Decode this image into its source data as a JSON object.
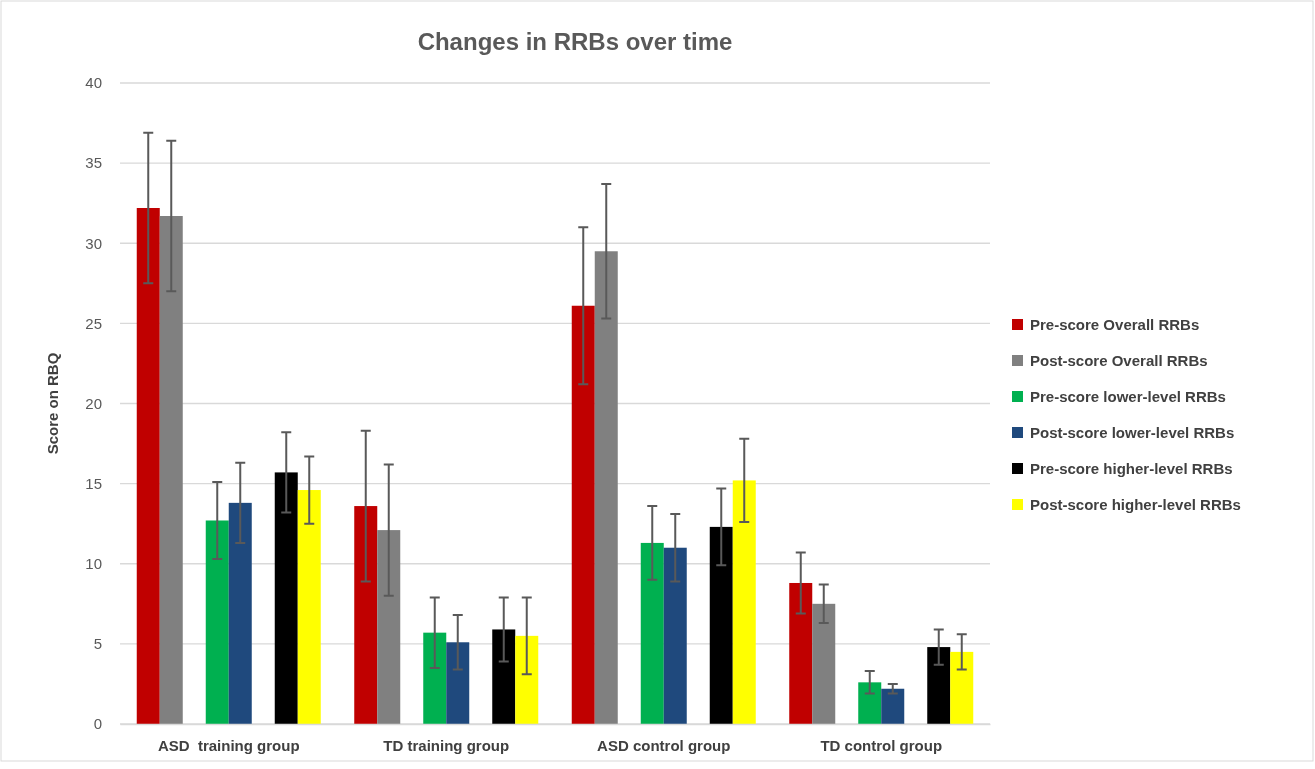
{
  "chart_data": {
    "type": "bar",
    "title": "Changes in RRBs over time",
    "ylabel": "Score on RBQ",
    "categories": [
      "ASD  training group",
      "TD training group",
      "ASD control group",
      "TD control group"
    ],
    "series": [
      {
        "name": "Pre-score Overall RRBs",
        "color": "#c00000",
        "values": [
          32.2,
          13.6,
          26.1,
          8.8
        ],
        "errors": [
          4.7,
          4.7,
          4.9,
          1.9
        ]
      },
      {
        "name": "Post-score Overall RRBs",
        "color": "#808080",
        "values": [
          31.7,
          12.1,
          29.5,
          7.5
        ],
        "errors": [
          4.7,
          4.1,
          4.2,
          1.2
        ]
      },
      {
        "name": "Pre-score lower-level RRBs",
        "color": "#00b050",
        "values": [
          12.7,
          5.7,
          11.3,
          2.6
        ],
        "errors": [
          2.4,
          2.2,
          2.3,
          0.7
        ]
      },
      {
        "name": "Post-score lower-level RRBs",
        "color": "#1f497d",
        "values": [
          13.8,
          5.1,
          11.0,
          2.2
        ],
        "errors": [
          2.5,
          1.7,
          2.1,
          0.3
        ]
      },
      {
        "name": "Pre-score higher-level RRBs",
        "color": "#000000",
        "values": [
          15.7,
          5.9,
          12.3,
          4.8
        ],
        "errors": [
          2.5,
          2.0,
          2.4,
          1.1
        ]
      },
      {
        "name": "Post-score higher-level RRBs",
        "color": "#ffff00",
        "values": [
          14.6,
          5.5,
          15.2,
          4.5
        ],
        "errors": [
          2.1,
          2.4,
          2.6,
          1.1
        ]
      }
    ],
    "ylim": [
      0,
      40
    ],
    "yticks": [
      0,
      5,
      10,
      15,
      20,
      25,
      30,
      35,
      40
    ],
    "grid": "y",
    "legend": "right"
  }
}
